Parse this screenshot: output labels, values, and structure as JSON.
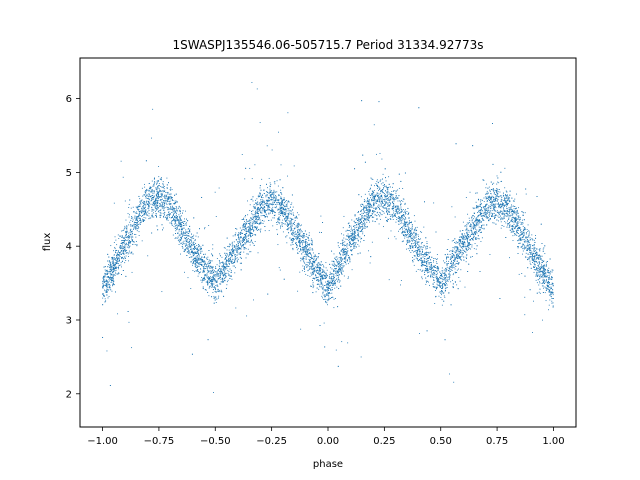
{
  "chart_data": {
    "type": "scatter",
    "title": "1SWASPJ135546.06-505715.7 Period 31334.92773s",
    "xlabel": "phase",
    "ylabel": "flux",
    "xlim": [
      -1.1,
      1.1
    ],
    "ylim": [
      1.55,
      6.55
    ],
    "x_ticks": [
      -1.0,
      -0.75,
      -0.5,
      -0.25,
      0.0,
      0.25,
      0.5,
      0.75,
      1.0
    ],
    "x_tick_labels": [
      "−1.00",
      "−0.75",
      "−0.50",
      "−0.25",
      "0.00",
      "0.25",
      "0.50",
      "0.75",
      "1.00"
    ],
    "y_ticks": [
      2,
      3,
      4,
      5,
      6
    ],
    "y_tick_labels": [
      "2",
      "3",
      "4",
      "5",
      "6"
    ],
    "grid": false,
    "marker_color": "#1f77b4",
    "series": [
      {
        "phase": [
          -1.0,
          -0.9,
          -0.8,
          -0.75,
          -0.7,
          -0.6,
          -0.5,
          -0.4,
          -0.3,
          -0.25,
          -0.2,
          -0.1,
          0.0,
          0.1,
          0.2,
          0.25,
          0.3,
          0.4,
          0.5,
          0.6,
          0.7,
          0.75,
          0.8,
          0.9,
          1.0
        ],
        "flux": [
          3.4,
          4.05,
          4.6,
          4.68,
          4.55,
          3.95,
          3.48,
          4.0,
          4.5,
          4.6,
          4.5,
          3.95,
          3.4,
          4.05,
          4.6,
          4.68,
          4.55,
          3.95,
          3.48,
          4.0,
          4.5,
          4.6,
          4.5,
          3.95,
          3.4
        ]
      }
    ]
  }
}
